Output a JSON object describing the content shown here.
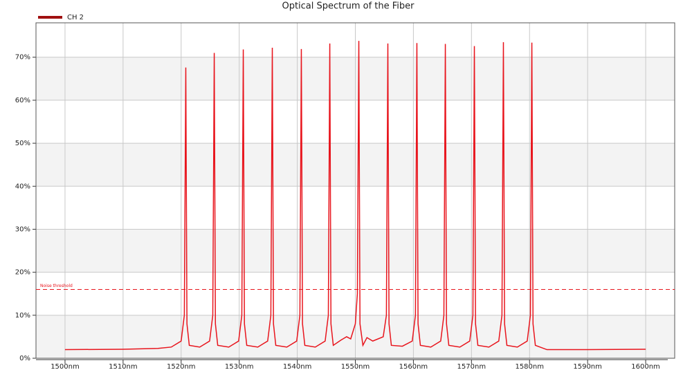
{
  "chart_data": {
    "type": "line",
    "title": "Optical Spectrum of the Fiber",
    "series": [
      {
        "name": "CH 2",
        "color": "#e8141c",
        "x": [
          1500,
          1510,
          1516,
          1518.3,
          1520.0,
          1520.55,
          1520.8,
          1521.0,
          1521.4,
          1523.2,
          1524.9,
          1525.45,
          1525.7,
          1525.9,
          1526.3,
          1528.2,
          1529.9,
          1530.45,
          1530.7,
          1530.9,
          1531.3,
          1533.2,
          1534.9,
          1535.45,
          1535.7,
          1535.9,
          1536.3,
          1538.2,
          1539.9,
          1540.45,
          1540.7,
          1540.9,
          1541.3,
          1543.1,
          1544.8,
          1545.35,
          1545.6,
          1545.8,
          1546.2,
          1547.5,
          1548.5,
          1549.2,
          1550.0,
          1550.35,
          1550.6,
          1550.8,
          1551.3,
          1552,
          1553,
          1554.8,
          1555.35,
          1555.6,
          1555.8,
          1556.2,
          1558.1,
          1559.8,
          1560.35,
          1560.6,
          1560.8,
          1561.2,
          1563.0,
          1564.7,
          1565.25,
          1565.5,
          1565.7,
          1566.1,
          1568.0,
          1569.7,
          1570.25,
          1570.5,
          1570.7,
          1571.1,
          1573.0,
          1574.7,
          1575.25,
          1575.5,
          1575.7,
          1576.1,
          1577.9,
          1579.6,
          1580.15,
          1580.4,
          1580.6,
          1581.0,
          1583,
          1590,
          1600
        ],
        "values": [
          2.0,
          2.1,
          2.3,
          2.6,
          4,
          10,
          67.6,
          8,
          3.0,
          2.6,
          4,
          10,
          71,
          8,
          3.0,
          2.6,
          4,
          10,
          71.8,
          8,
          3.0,
          2.6,
          4,
          10,
          72.2,
          8,
          3.0,
          2.6,
          4,
          10,
          71.9,
          8,
          3.0,
          2.6,
          4,
          10,
          73.2,
          8,
          3.0,
          4.2,
          5.0,
          4.5,
          8,
          15,
          73.8,
          8,
          3.0,
          4.8,
          4.0,
          5,
          10,
          73.2,
          8,
          3.0,
          2.8,
          4,
          10,
          73.3,
          8,
          3.0,
          2.6,
          4,
          10,
          73.1,
          8,
          3.0,
          2.6,
          4,
          10,
          72.6,
          8,
          3.0,
          2.6,
          4,
          10,
          73.5,
          8,
          3.0,
          2.6,
          4,
          10,
          73.4,
          8,
          3.0,
          2.0,
          2.0,
          2.1
        ]
      }
    ],
    "threshold": {
      "label": "Noise threshold",
      "value": 16
    },
    "xlim": [
      1495,
      1605
    ],
    "ylim": [
      0,
      78
    ],
    "xticks": [
      {
        "value": 1500,
        "label": "1500nm"
      },
      {
        "value": 1510,
        "label": "1510nm"
      },
      {
        "value": 1520,
        "label": "1520nm"
      },
      {
        "value": 1530,
        "label": "1530nm"
      },
      {
        "value": 1540,
        "label": "1540nm"
      },
      {
        "value": 1550,
        "label": "1550nm"
      },
      {
        "value": 1560,
        "label": "1560nm"
      },
      {
        "value": 1570,
        "label": "1570nm"
      },
      {
        "value": 1580,
        "label": "1580nm"
      },
      {
        "value": 1590,
        "label": "1590nm"
      },
      {
        "value": 1600,
        "label": "1600nm"
      }
    ],
    "yticks": [
      {
        "value": 0,
        "label": "0%"
      },
      {
        "value": 10,
        "label": "10%"
      },
      {
        "value": 20,
        "label": "20%"
      },
      {
        "value": 30,
        "label": "30%"
      },
      {
        "value": 40,
        "label": "40%"
      },
      {
        "value": 50,
        "label": "50%"
      },
      {
        "value": 60,
        "label": "60%"
      },
      {
        "value": 70,
        "label": "70%"
      }
    ],
    "grid": true
  }
}
